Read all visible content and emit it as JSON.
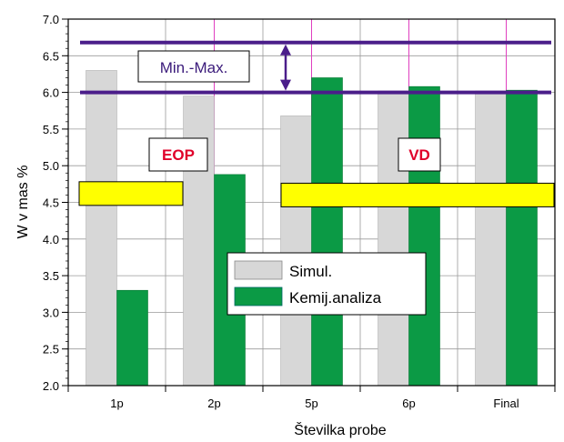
{
  "chart_data": {
    "type": "bar",
    "categories": [
      "1p",
      "2p",
      "5p",
      "6p",
      "Final"
    ],
    "series": [
      {
        "name": "Simul.",
        "values": [
          6.3,
          5.95,
          5.68,
          6.02,
          6.02
        ],
        "color": "#d7d7d7"
      },
      {
        "name": "Kemij.analiza",
        "values": [
          3.3,
          4.88,
          6.2,
          6.08,
          6.03
        ],
        "color": "#0b9a45"
      }
    ],
    "title": "",
    "xlabel": "Številka probe",
    "ylabel": "W v mas %",
    "ylim": [
      2.0,
      7.0
    ],
    "y_ticks": [
      "2.0",
      "2.5",
      "3.0",
      "3.5",
      "4.0",
      "4.5",
      "5.0",
      "5.5",
      "6.0",
      "6.5",
      "7.0"
    ],
    "grid": true,
    "legend_position": "lower-center",
    "reference_lines": [
      {
        "value": 6.0,
        "color": "#4b1e8a"
      },
      {
        "value": 6.68,
        "color": "#4b1e8a"
      }
    ],
    "range_label": "Min.-Max.",
    "zones": [
      {
        "label": "EOP",
        "from": "1p",
        "to": "2p",
        "level": 4.62
      },
      {
        "label": "VD",
        "from": "5p",
        "to": "Final",
        "level": 4.6
      }
    ],
    "colors": {
      "grid": "#9a9a9a",
      "zone_divider": "#e040c0",
      "band": "#ffff00",
      "zone_text": "#e0002a",
      "annotation": "#4b1e8a"
    }
  }
}
